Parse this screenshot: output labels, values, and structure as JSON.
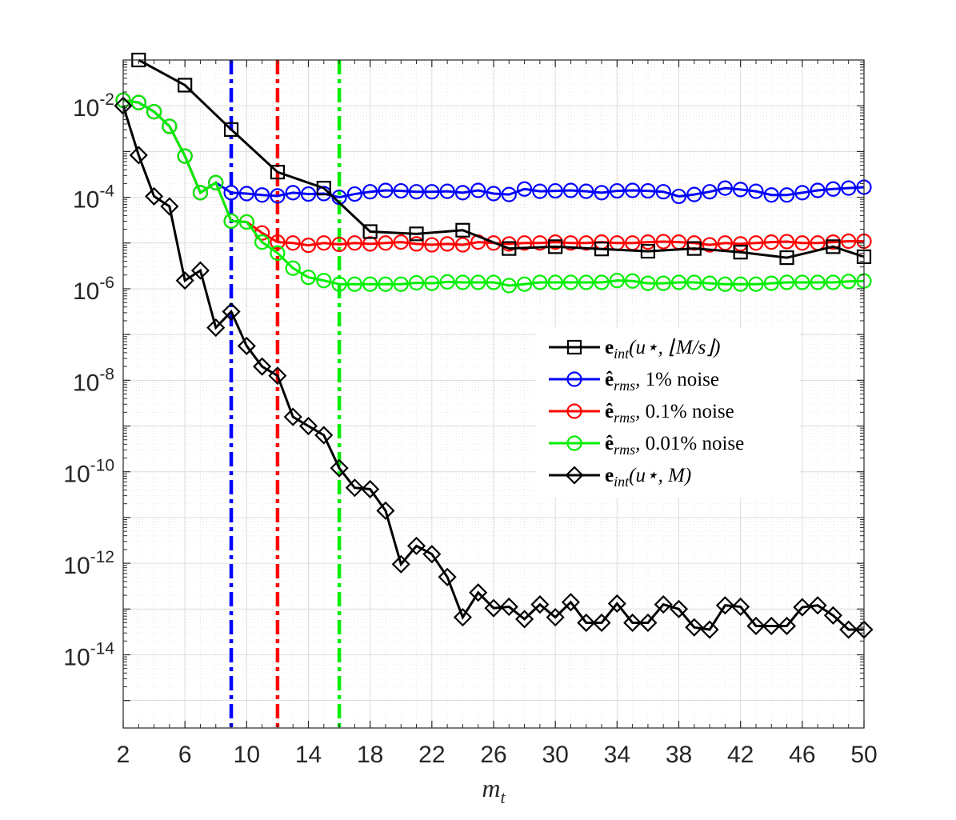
{
  "chart_data": {
    "type": "line",
    "title": "",
    "xlabel": "m_t",
    "ylabel": "",
    "xlim": [
      2,
      50
    ],
    "ylim_log10": [
      -15.6,
      -1.0
    ],
    "yscale": "log",
    "grid": true,
    "minor_grid": true,
    "legend_placement": "center-right",
    "x_ticks": [
      2,
      6,
      10,
      14,
      18,
      22,
      26,
      30,
      34,
      38,
      42,
      46,
      50
    ],
    "x_tick_labels": [
      "2",
      "6",
      "10",
      "14",
      "18",
      "22",
      "26",
      "30",
      "34",
      "38",
      "42",
      "46",
      "50"
    ],
    "y_ticks_log10": [
      -14,
      -12,
      -10,
      -8,
      -6,
      -4,
      -2
    ],
    "y_tick_labels": [
      {
        "base": "10",
        "exp": "-14"
      },
      {
        "base": "10",
        "exp": "-12"
      },
      {
        "base": "10",
        "exp": "-10"
      },
      {
        "base": "10",
        "exp": "-8"
      },
      {
        "base": "10",
        "exp": "-6"
      },
      {
        "base": "10",
        "exp": "-4"
      },
      {
        "base": "10",
        "exp": "-2"
      }
    ],
    "vertical_lines": [
      {
        "x": 9,
        "color": "#0000ff"
      },
      {
        "x": 12,
        "color": "#ff0000"
      },
      {
        "x": 16,
        "color": "#00ee00"
      }
    ],
    "series": [
      {
        "name": "e_int(u*, ⌊M/s⌋)",
        "color": "#000000",
        "marker": "square",
        "x": [
          3,
          6,
          9,
          12,
          15,
          18,
          21,
          24,
          27,
          30,
          33,
          36,
          39,
          42,
          45,
          48,
          50
        ],
        "y_log10": [
          -1.0,
          -1.55,
          -2.52,
          -3.45,
          -3.8,
          -4.75,
          -4.8,
          -4.72,
          -5.12,
          -5.08,
          -5.13,
          -5.18,
          -5.12,
          -5.2,
          -5.32,
          -5.08,
          -5.3
        ]
      },
      {
        "name": "ê_rms, 1% noise",
        "color": "#0000ff",
        "marker": "circle",
        "x": [
          2,
          3,
          4,
          5,
          6,
          7,
          8,
          9,
          10,
          11,
          12,
          13,
          14,
          15,
          16,
          17,
          18,
          19,
          20,
          21,
          22,
          23,
          24,
          25,
          26,
          27,
          28,
          29,
          30,
          31,
          32,
          33,
          34,
          35,
          36,
          37,
          38,
          39,
          40,
          41,
          42,
          43,
          44,
          45,
          46,
          47,
          48,
          49,
          50
        ],
        "y_log10": [
          -1.88,
          -1.93,
          -2.13,
          -2.45,
          -3.1,
          -3.9,
          -3.68,
          -3.9,
          -3.92,
          -3.95,
          -3.97,
          -3.9,
          -3.93,
          -3.92,
          -4.0,
          -3.93,
          -3.88,
          -3.85,
          -3.86,
          -3.88,
          -3.88,
          -3.87,
          -3.9,
          -3.85,
          -3.92,
          -3.94,
          -3.82,
          -3.87,
          -3.86,
          -3.85,
          -3.87,
          -3.9,
          -3.86,
          -3.85,
          -3.86,
          -3.88,
          -3.98,
          -3.94,
          -3.88,
          -3.8,
          -3.83,
          -3.87,
          -3.95,
          -3.95,
          -3.9,
          -3.85,
          -3.82,
          -3.8,
          -3.78
        ]
      },
      {
        "name": "ê_rms, 0.1% noise",
        "color": "#ff0000",
        "marker": "circle",
        "x": [
          2,
          3,
          4,
          5,
          6,
          7,
          8,
          9,
          10,
          11,
          12,
          13,
          14,
          15,
          16,
          17,
          18,
          19,
          20,
          21,
          22,
          23,
          24,
          25,
          26,
          27,
          28,
          29,
          30,
          31,
          32,
          33,
          34,
          35,
          36,
          37,
          38,
          39,
          40,
          41,
          42,
          43,
          44,
          45,
          46,
          47,
          48,
          49,
          50
        ],
        "y_log10": [
          -1.88,
          -1.93,
          -2.13,
          -2.45,
          -3.1,
          -3.9,
          -3.68,
          -4.52,
          -4.54,
          -4.78,
          -4.98,
          -5.0,
          -5.05,
          -5.0,
          -5.03,
          -5.0,
          -5.02,
          -5.0,
          -4.98,
          -5.02,
          -5.04,
          -5.02,
          -5.04,
          -4.98,
          -5.0,
          -5.02,
          -5.0,
          -5.0,
          -4.98,
          -5.0,
          -5.0,
          -4.98,
          -5.0,
          -5.0,
          -4.98,
          -4.97,
          -4.98,
          -5.0,
          -5.04,
          -5.0,
          -5.02,
          -5.0,
          -4.98,
          -4.97,
          -5.0,
          -5.0,
          -4.98,
          -4.96,
          -4.96
        ]
      },
      {
        "name": "ê_rms, 0.01% noise",
        "color": "#00ee00",
        "marker": "circle",
        "x": [
          2,
          3,
          4,
          5,
          6,
          7,
          8,
          9,
          10,
          11,
          12,
          13,
          14,
          15,
          16,
          17,
          18,
          19,
          20,
          21,
          22,
          23,
          24,
          25,
          26,
          27,
          28,
          29,
          30,
          31,
          32,
          33,
          34,
          35,
          36,
          37,
          38,
          39,
          40,
          41,
          42,
          43,
          44,
          45,
          46,
          47,
          48,
          49,
          50
        ],
        "y_log10": [
          -1.88,
          -1.93,
          -2.13,
          -2.45,
          -3.1,
          -3.9,
          -3.68,
          -4.52,
          -4.54,
          -4.98,
          -5.22,
          -5.55,
          -5.75,
          -5.82,
          -5.9,
          -5.9,
          -5.9,
          -5.9,
          -5.9,
          -5.87,
          -5.88,
          -5.85,
          -5.86,
          -5.86,
          -5.86,
          -5.93,
          -5.9,
          -5.86,
          -5.86,
          -5.86,
          -5.86,
          -5.86,
          -5.82,
          -5.83,
          -5.88,
          -5.88,
          -5.86,
          -5.86,
          -5.88,
          -5.9,
          -5.9,
          -5.9,
          -5.88,
          -5.86,
          -5.86,
          -5.86,
          -5.86,
          -5.84,
          -5.83
        ]
      },
      {
        "name": "e_int(u*, M)",
        "color": "#000000",
        "marker": "diamond",
        "x": [
          2,
          3,
          4,
          5,
          6,
          7,
          8,
          9,
          10,
          11,
          12,
          13,
          14,
          15,
          16,
          17,
          18,
          19,
          20,
          21,
          22,
          23,
          24,
          25,
          26,
          27,
          28,
          29,
          30,
          31,
          32,
          33,
          34,
          35,
          36,
          37,
          38,
          39,
          40,
          41,
          42,
          43,
          44,
          45,
          46,
          47,
          48,
          49,
          50
        ],
        "y_log10": [
          -2.0,
          -3.08,
          -3.98,
          -4.2,
          -5.82,
          -5.6,
          -6.85,
          -6.5,
          -7.25,
          -7.7,
          -7.9,
          -8.8,
          -9.0,
          -9.2,
          -9.92,
          -10.35,
          -10.38,
          -10.85,
          -12.02,
          -11.62,
          -11.8,
          -12.3,
          -13.18,
          -12.64,
          -12.98,
          -12.95,
          -13.22,
          -12.9,
          -13.18,
          -12.85,
          -13.3,
          -13.3,
          -12.88,
          -13.3,
          -13.3,
          -12.9,
          -13.0,
          -13.4,
          -13.45,
          -12.92,
          -12.95,
          -13.37,
          -13.37,
          -13.37,
          -12.96,
          -12.92,
          -13.14,
          -13.45,
          -13.45
        ]
      }
    ],
    "legend": {
      "entries": [
        {
          "math": "e",
          "sub": "int",
          "rest": "(u⋆, ⌊M/s⌋)",
          "suffix": ""
        },
        {
          "math": "ê",
          "sub": "rms",
          "rest": ",",
          "suffix": " 1% noise"
        },
        {
          "math": "ê",
          "sub": "rms",
          "rest": ",",
          "suffix": " 0.1% noise"
        },
        {
          "math": "ê",
          "sub": "rms",
          "rest": ",",
          "suffix": " 0.01% noise"
        },
        {
          "math": "e",
          "sub": "int",
          "rest": "(u⋆, M)",
          "suffix": ""
        }
      ]
    }
  }
}
